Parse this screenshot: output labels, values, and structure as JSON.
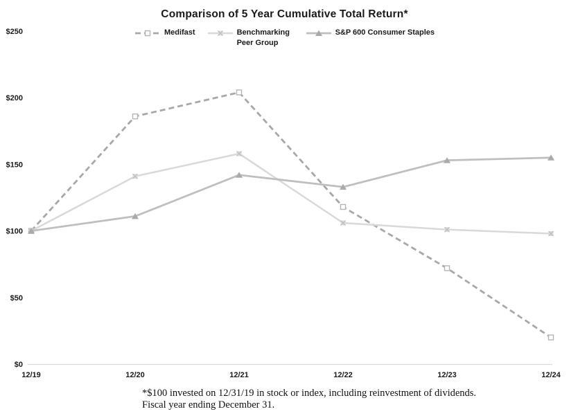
{
  "title": "Comparison of 5 Year Cumulative Total Return*",
  "footnote": {
    "line1": "*$100 invested on 12/31/19 in stock or index, including reinvestment of dividends.",
    "line2": "Fiscal year ending December 31."
  },
  "chart_data": {
    "type": "line",
    "title": "Comparison of 5 Year Cumulative Total Return*",
    "categories": [
      "12/19",
      "12/20",
      "12/21",
      "12/22",
      "12/23",
      "12/24"
    ],
    "series": [
      {
        "name": "Medifast",
        "values": [
          100,
          186,
          204,
          118,
          72,
          20
        ],
        "color": "#a8a8a8",
        "dash": "8 5",
        "line_width": 2.8,
        "marker": "open-square",
        "marker_color": "#b5b5b5"
      },
      {
        "name": "Benchmarking Peer Group",
        "values": [
          100,
          141,
          158,
          106,
          101,
          98
        ],
        "color": "#d9d9d9",
        "dash": "",
        "line_width": 2.5,
        "marker": "x-square",
        "marker_color": "#bcbcbc"
      },
      {
        "name": "S&P 600 Consumer Staples",
        "values": [
          100,
          111,
          142,
          133,
          153,
          155
        ],
        "color": "#bfbfbf",
        "dash": "",
        "line_width": 2.8,
        "marker": "triangle",
        "marker_color": "#aaaaaa"
      }
    ],
    "xlabel": "",
    "ylabel": "",
    "ylim": [
      0,
      250
    ],
    "ytick_step": 50,
    "ytick_prefix": "$",
    "grid": false,
    "legend_position": "top",
    "axis_line_color": "#d9d9d9",
    "tick_label_color": "#1a1a1a"
  }
}
